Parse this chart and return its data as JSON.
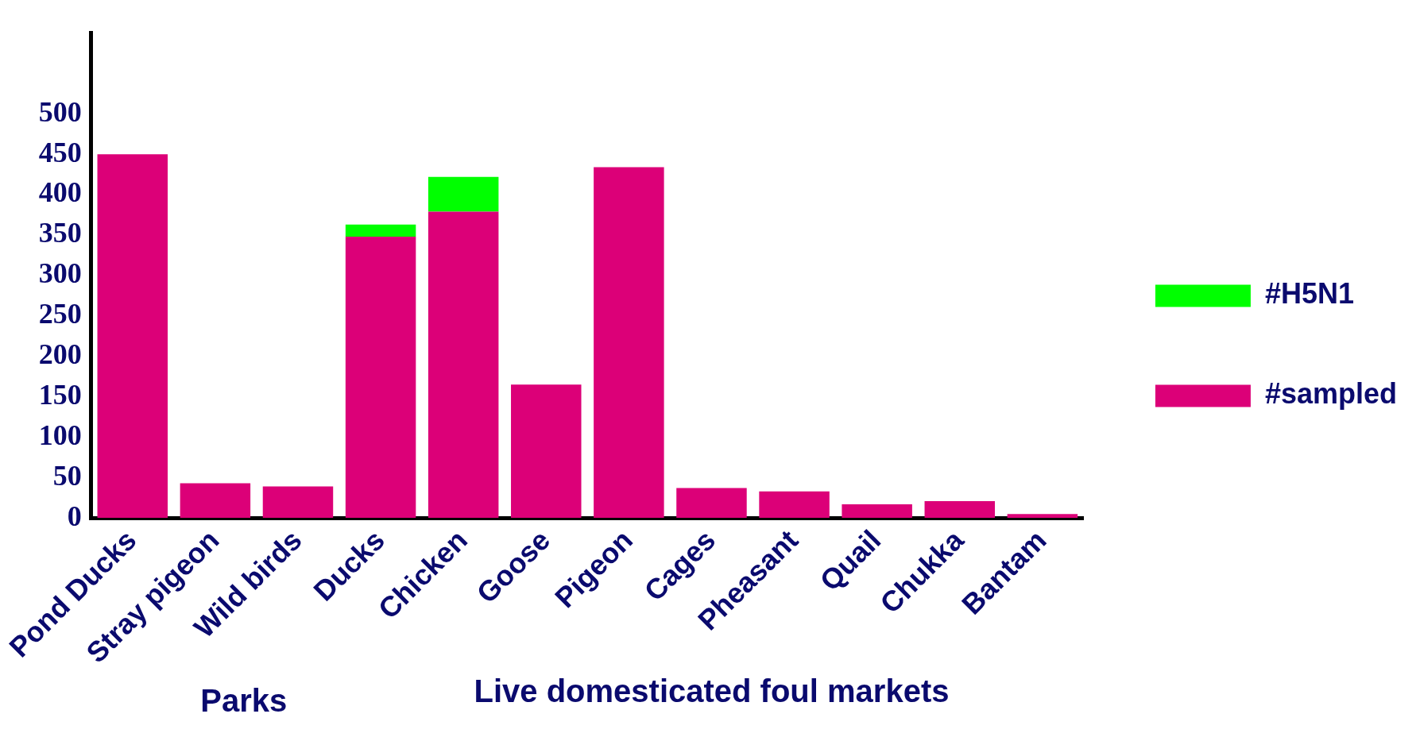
{
  "chart_data": {
    "type": "bar",
    "stacked": true,
    "categories": [
      "Pond Ducks",
      "Stray pigeon",
      "Wild birds",
      "Ducks",
      "Chicken",
      "Goose",
      "Pigeon",
      "Cages",
      "Pheasant",
      "Quail",
      "Chukka",
      "Bantam"
    ],
    "series": [
      {
        "name": "#sampled",
        "color": "#dc0078",
        "values": [
          450,
          43,
          39,
          348,
          379,
          165,
          434,
          37,
          33,
          17,
          21,
          5
        ]
      },
      {
        "name": "#H5N1",
        "color": "#00ff00",
        "values": [
          null,
          null,
          null,
          15,
          43,
          null,
          null,
          null,
          null,
          null,
          null,
          null
        ]
      }
    ],
    "ylim": [
      0,
      600
    ],
    "yticks": [
      0,
      50,
      100,
      150,
      200,
      250,
      300,
      350,
      400,
      450,
      500
    ],
    "grid": false,
    "legend": "right",
    "annotations": [
      "Parks",
      "Live domesticated foul markets"
    ]
  }
}
